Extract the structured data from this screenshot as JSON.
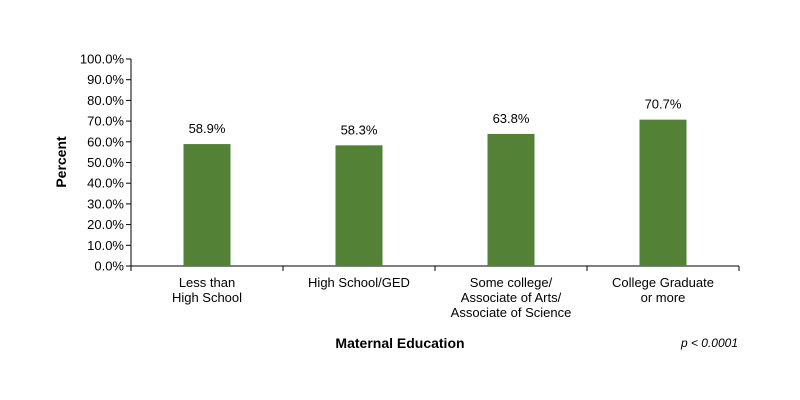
{
  "chart_data": {
    "type": "bar",
    "categories": [
      [
        "Less than",
        "High School"
      ],
      [
        "High School/GED"
      ],
      [
        "Some college/",
        "Associate of Arts/",
        "Associate of Science"
      ],
      [
        "College Graduate",
        "or more"
      ]
    ],
    "values": [
      58.9,
      58.3,
      63.8,
      70.7
    ],
    "data_labels": [
      "58.9%",
      "58.3%",
      "63.8%",
      "70.7%"
    ],
    "xlabel": "Maternal Education",
    "ylabel": "Percent",
    "ylim": [
      0,
      100
    ],
    "yticks": [
      "0.0%",
      "10.0%",
      "20.0%",
      "30.0%",
      "40.0%",
      "50.0%",
      "60.0%",
      "70.0%",
      "80.0%",
      "90.0%",
      "100.0%"
    ],
    "annotation": "p < 0.0001",
    "bar_color": "#538135",
    "grid": false
  }
}
